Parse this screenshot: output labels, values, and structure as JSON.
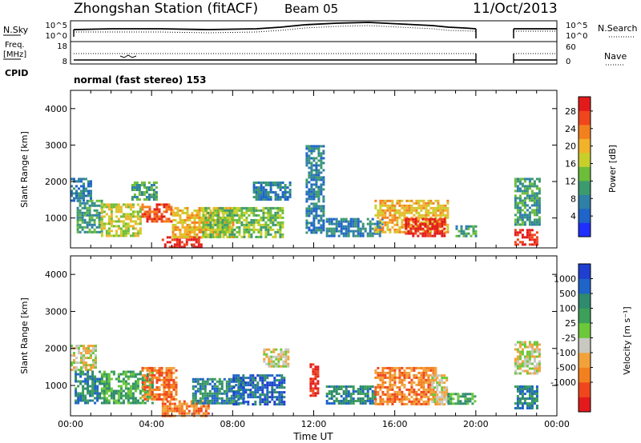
{
  "header": {
    "station": "Zhongshan Station (fitACF)",
    "beam": "Beam 05",
    "date": "11/Oct/2013"
  },
  "summary_panel": {
    "left_labels": [
      "N.Sky",
      "Freq.",
      "[MHz]",
      "CPID"
    ],
    "right_labels": [
      "N.Search",
      "Nave"
    ],
    "noise_ticks": [
      "10^5",
      "10^0"
    ],
    "noise_right_ticks": [
      "10^5",
      "10^0"
    ],
    "freq_ticks": [
      "18",
      "8"
    ],
    "nave_ticks": [
      "60",
      "0"
    ],
    "cpid_text": "normal (fast stereo) 153"
  },
  "chart_data": [
    {
      "type": "heatmap",
      "title": "",
      "xlabel": "",
      "ylabel": "Slant Range [km]",
      "xlim_hours": [
        0,
        24
      ],
      "ylim": [
        180,
        4500
      ],
      "y_ticks": [
        "1000",
        "2000",
        "3000",
        "4000"
      ],
      "colorbar": {
        "label": "Power [dB]",
        "ticks": [
          "4",
          "8",
          "12",
          "16",
          "20",
          "24",
          "28"
        ],
        "colors": [
          "#1f2fff",
          "#1f64c8",
          "#2f7fa6",
          "#3c9a6e",
          "#6cbd3a",
          "#c8cf2a",
          "#f2b22a",
          "#f3801f",
          "#f0461d",
          "#e31a1c"
        ]
      },
      "echo_blocks": [
        {
          "t0": 0.0,
          "t1": 1.0,
          "r0": 1500,
          "r1": 2100,
          "level": 2
        },
        {
          "t0": 0.3,
          "t1": 1.6,
          "r0": 600,
          "r1": 1500,
          "level": 3
        },
        {
          "t0": 1.5,
          "t1": 3.5,
          "r0": 500,
          "r1": 1400,
          "level": 5
        },
        {
          "t0": 3.0,
          "t1": 4.3,
          "r0": 1500,
          "r1": 2000,
          "level": 3
        },
        {
          "t0": 3.5,
          "t1": 5.0,
          "r0": 900,
          "r1": 1400,
          "level": 8
        },
        {
          "t0": 4.5,
          "t1": 6.5,
          "r0": 200,
          "r1": 500,
          "level": 9
        },
        {
          "t0": 5.0,
          "t1": 8.0,
          "r0": 500,
          "r1": 1300,
          "level": 6
        },
        {
          "t0": 6.5,
          "t1": 10.5,
          "r0": 500,
          "r1": 1300,
          "level": 4
        },
        {
          "t0": 9.0,
          "t1": 10.8,
          "r0": 1500,
          "r1": 2000,
          "level": 2
        },
        {
          "t0": 11.6,
          "t1": 12.5,
          "r0": 600,
          "r1": 3000,
          "level": 2
        },
        {
          "t0": 12.6,
          "t1": 15.4,
          "r0": 500,
          "r1": 1000,
          "level": 2
        },
        {
          "t0": 15.0,
          "t1": 18.6,
          "r0": 600,
          "r1": 1500,
          "level": 6
        },
        {
          "t0": 16.5,
          "t1": 18.5,
          "r0": 500,
          "r1": 1000,
          "level": 9
        },
        {
          "t0": 19.0,
          "t1": 20.0,
          "r0": 500,
          "r1": 800,
          "level": 3
        },
        {
          "t0": 21.9,
          "t1": 23.0,
          "r0": 300,
          "r1": 700,
          "level": 9
        },
        {
          "t0": 21.9,
          "t1": 23.1,
          "r0": 800,
          "r1": 2100,
          "level": 3
        }
      ]
    },
    {
      "type": "heatmap",
      "title": "",
      "xlabel": "Time UT",
      "ylabel": "Slant Range [km]",
      "xlim_hours": [
        0,
        24
      ],
      "ylim": [
        180,
        4500
      ],
      "y_ticks": [
        "1000",
        "2000",
        "3000",
        "4000"
      ],
      "x_ticks": [
        "00:00",
        "04:00",
        "08:00",
        "12:00",
        "16:00",
        "20:00",
        "00:00"
      ],
      "colorbar": {
        "label": "Velocity [m s⁻¹]",
        "ticks": [
          "1000",
          "500",
          "100",
          "25",
          "-25",
          "-100",
          "-500",
          "-1000"
        ],
        "colors": [
          "#1f3fd0",
          "#1f64c8",
          "#2f8a6e",
          "#3ca05a",
          "#6cc83a",
          "#c8c8c0",
          "#f2a23a",
          "#f3801f",
          "#f0461d",
          "#e31a1c"
        ]
      },
      "echo_blocks": [
        {
          "t0": 0.0,
          "t1": 1.2,
          "r0": 1400,
          "r1": 2100,
          "level": 5
        },
        {
          "t0": 0.2,
          "t1": 1.5,
          "r0": 500,
          "r1": 1400,
          "level": 2
        },
        {
          "t0": 1.5,
          "t1": 4.0,
          "r0": 500,
          "r1": 1400,
          "level": 3
        },
        {
          "t0": 3.5,
          "t1": 5.2,
          "r0": 600,
          "r1": 1500,
          "level": 7
        },
        {
          "t0": 4.5,
          "t1": 6.8,
          "r0": 200,
          "r1": 600,
          "level": 7
        },
        {
          "t0": 6.0,
          "t1": 8.5,
          "r0": 500,
          "r1": 1200,
          "level": 2
        },
        {
          "t0": 8.0,
          "t1": 10.5,
          "r0": 500,
          "r1": 1300,
          "level": 1
        },
        {
          "t0": 9.5,
          "t1": 10.8,
          "r0": 1500,
          "r1": 2000,
          "level": 5
        },
        {
          "t0": 11.8,
          "t1": 12.2,
          "r0": 700,
          "r1": 1600,
          "level": 9
        },
        {
          "t0": 12.6,
          "t1": 15.0,
          "r0": 500,
          "r1": 1000,
          "level": 2
        },
        {
          "t0": 15.0,
          "t1": 18.0,
          "r0": 500,
          "r1": 1500,
          "level": 7
        },
        {
          "t0": 17.8,
          "t1": 18.6,
          "r0": 500,
          "r1": 1300,
          "level": 5
        },
        {
          "t0": 18.6,
          "t1": 20.0,
          "r0": 500,
          "r1": 800,
          "level": 3
        },
        {
          "t0": 21.9,
          "t1": 23.2,
          "r0": 1300,
          "r1": 2200,
          "level": 5
        },
        {
          "t0": 21.9,
          "t1": 23.0,
          "r0": 400,
          "r1": 1000,
          "level": 2
        }
      ]
    }
  ]
}
